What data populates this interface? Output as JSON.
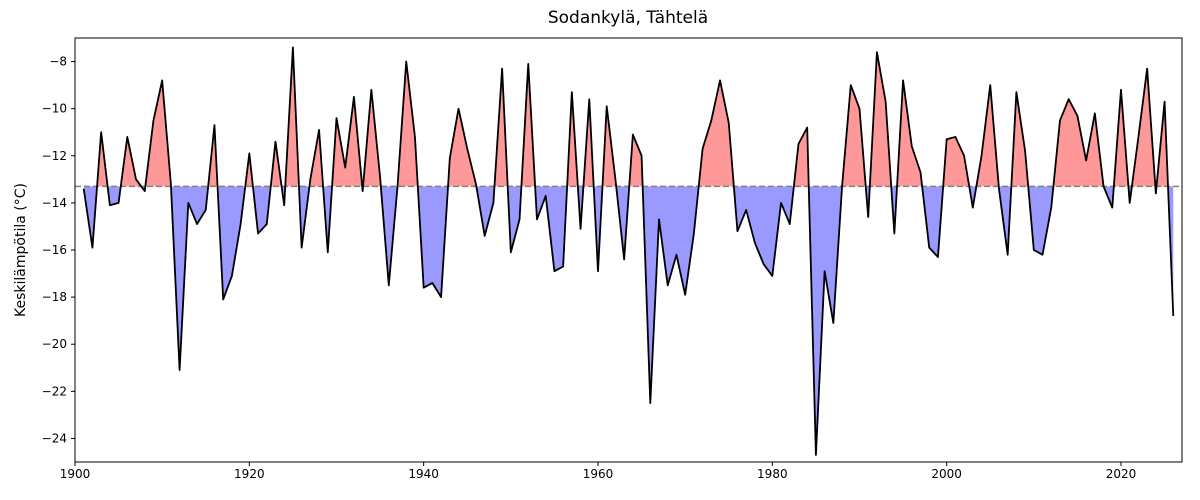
{
  "chart_data": {
    "type": "line",
    "title": "Sodankylä, Tähtelä",
    "y_label": "Keskilämpötila (°C)",
    "x": [
      1901,
      1902,
      1903,
      1904,
      1905,
      1906,
      1907,
      1908,
      1909,
      1910,
      1911,
      1912,
      1913,
      1914,
      1915,
      1916,
      1917,
      1918,
      1919,
      1920,
      1921,
      1922,
      1923,
      1924,
      1925,
      1926,
      1927,
      1928,
      1929,
      1930,
      1931,
      1932,
      1933,
      1934,
      1935,
      1936,
      1937,
      1938,
      1939,
      1940,
      1941,
      1942,
      1943,
      1944,
      1945,
      1946,
      1947,
      1948,
      1949,
      1950,
      1951,
      1952,
      1953,
      1954,
      1955,
      1956,
      1957,
      1958,
      1959,
      1960,
      1961,
      1962,
      1963,
      1964,
      1965,
      1966,
      1967,
      1968,
      1969,
      1970,
      1971,
      1972,
      1973,
      1974,
      1975,
      1976,
      1977,
      1978,
      1979,
      1980,
      1981,
      1982,
      1983,
      1984,
      1985,
      1986,
      1987,
      1988,
      1989,
      1990,
      1991,
      1992,
      1993,
      1994,
      1995,
      1996,
      1997,
      1998,
      1999,
      2000,
      2001,
      2002,
      2003,
      2004,
      2005,
      2006,
      2007,
      2008,
      2009,
      2010,
      2011,
      2012,
      2013,
      2014,
      2015,
      2016,
      2017,
      2018,
      2019,
      2020,
      2021,
      2022,
      2023,
      2024,
      2025,
      2026
    ],
    "series": [
      {
        "color": "#000000",
        "values": [
          -13.4,
          -15.9,
          -11,
          -14.1,
          -14,
          -11.2,
          -13,
          -13.5,
          -10.5,
          -8.8,
          -13.2,
          -21.1,
          -14,
          -14.9,
          -14.3,
          -10.7,
          -18.1,
          -17.1,
          -14.9,
          -11.9,
          -15.3,
          -14.9,
          -11.4,
          -14.1,
          -7.4,
          -15.9,
          -13,
          -10.9,
          -16.1,
          -10.4,
          -12.5,
          -9.5,
          -13.5,
          -9.2,
          -12.9,
          -17.5,
          -13.3,
          -8,
          -11.2,
          -17.6,
          -17.4,
          -18,
          -12.1,
          -10,
          -11.7,
          -13.2,
          -15.4,
          -14,
          -8.3,
          -16.1,
          -14.7,
          -8.1,
          -14.7,
          -13.7,
          -16.9,
          -16.7,
          -9.3,
          -15.1,
          -9.6,
          -16.9,
          -9.9,
          -13,
          -16.4,
          -11.1,
          -12,
          -22.5,
          -14.7,
          -17.5,
          -16.2,
          -17.9,
          -15.3,
          -11.7,
          -10.5,
          -8.8,
          -10.6,
          -15.2,
          -14.3,
          -15.7,
          -16.6,
          -17.1,
          -14,
          -14.9,
          -11.5,
          -10.8,
          -24.7,
          -16.9,
          -19.1,
          -13.3,
          -9,
          -10,
          -14.6,
          -7.6,
          -9.7,
          -15.3,
          -8.8,
          -11.6,
          -12.7,
          -15.9,
          -16.3,
          -11.3,
          -11.2,
          -12,
          -14.2,
          -12,
          -9,
          -13.4,
          -16.2,
          -9.3,
          -11.8,
          -16,
          -16.2,
          -14.2,
          -10.5,
          -9.6,
          -10.3,
          -12.2,
          -10.2,
          -13.3,
          -14.2,
          -9.2,
          -14,
          -11.2,
          -8.3,
          -13.6,
          -9.7,
          -18.8
        ]
      }
    ],
    "reference_line": -13.3,
    "above_color": "#ff9999",
    "below_color": "#9999ff",
    "reference_color": "#808080",
    "xlim": [
      1900,
      2027
    ],
    "ylim": [
      -25,
      -7
    ],
    "xticks": [
      1900,
      1920,
      1940,
      1960,
      1980,
      2000,
      2020
    ],
    "yticks": [
      {
        "value": -24,
        "label": "−24"
      },
      {
        "value": -22,
        "label": "−22"
      },
      {
        "value": -20,
        "label": "−20"
      },
      {
        "value": -18,
        "label": "−18"
      },
      {
        "value": -16,
        "label": "−16"
      },
      {
        "value": -14,
        "label": "−14"
      },
      {
        "value": -12,
        "label": "−12"
      },
      {
        "value": -10,
        "label": "−10"
      },
      {
        "value": -8,
        "label": "−8"
      }
    ]
  }
}
